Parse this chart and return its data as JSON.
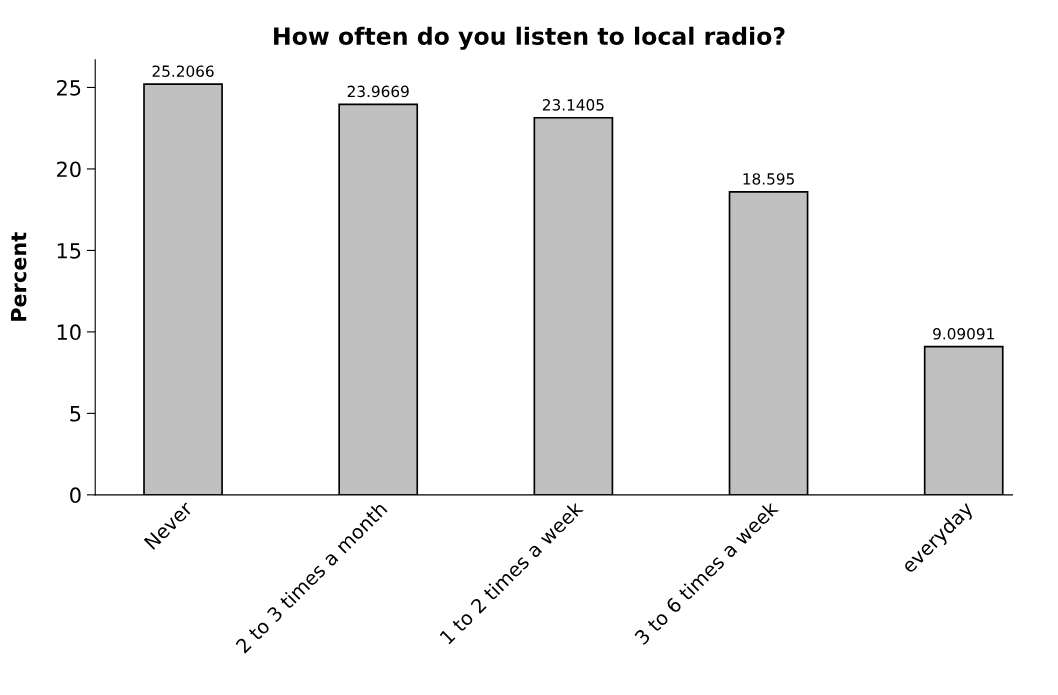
{
  "chart_data": {
    "type": "bar",
    "title": "How often do you listen to local radio?",
    "ylabel": "Percent",
    "categories": [
      "Never",
      "2 to 3 times a month",
      "1 to 2 times a week",
      "3 to 6 times a week",
      "everyday"
    ],
    "values": [
      25.2066,
      23.9669,
      23.1405,
      18.595,
      9.09091
    ],
    "color": "#c0c0c0",
    "ylim": [
      0,
      26.7
    ],
    "yticks": [
      0,
      5,
      10,
      15,
      20,
      25
    ],
    "data_labels": true,
    "grid": false
  }
}
